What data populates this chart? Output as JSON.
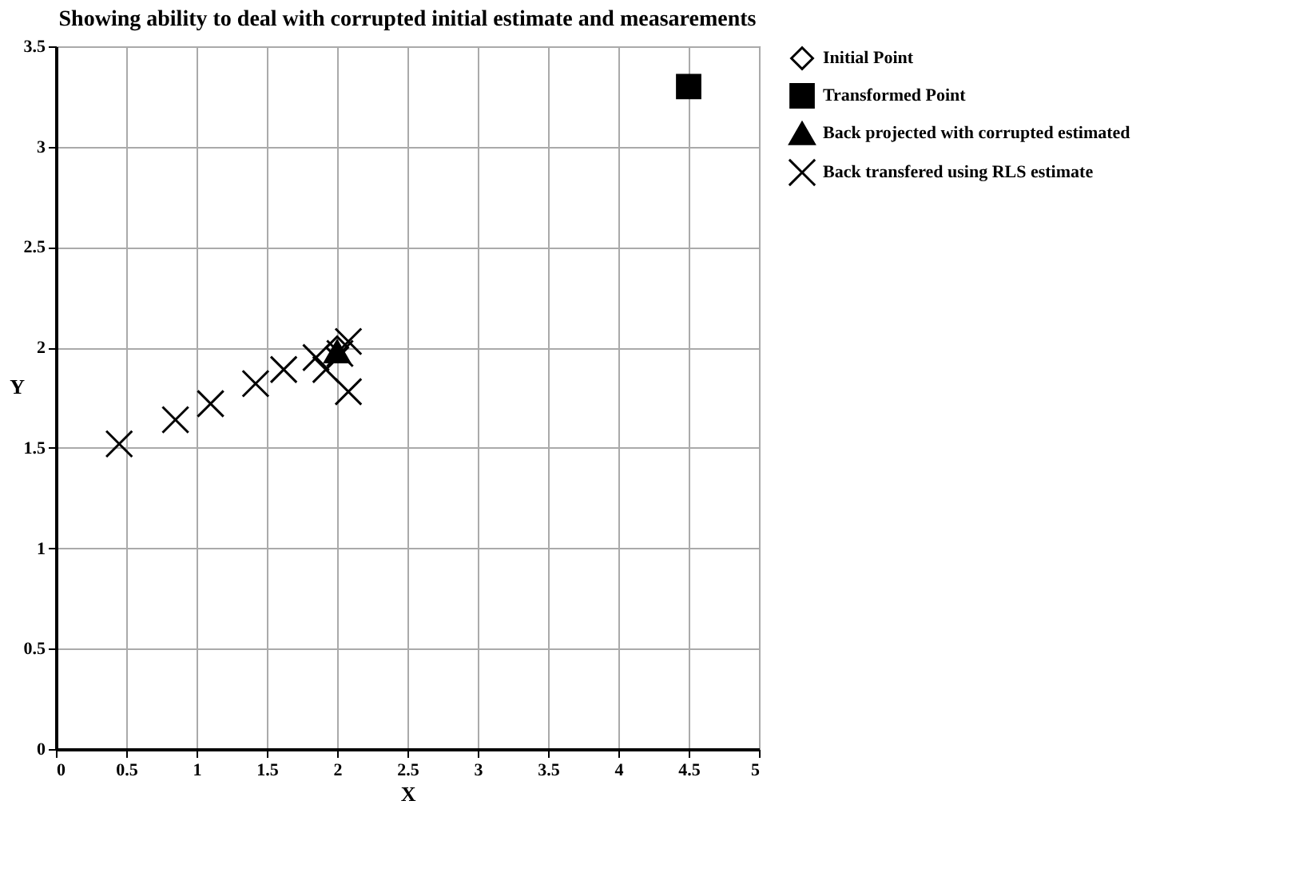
{
  "chart_data": {
    "type": "scatter",
    "title": "Showing ability to deal with corrupted initial estimate and measarements",
    "xlabel": "X",
    "ylabel": "Y",
    "xlim": [
      0,
      5
    ],
    "ylim": [
      0,
      3.5
    ],
    "xticks": [
      0,
      0.5,
      1,
      1.5,
      2,
      2.5,
      3,
      3.5,
      4,
      4.5,
      5
    ],
    "yticks": [
      0,
      0.5,
      1,
      1.5,
      2,
      2.5,
      3,
      3.5
    ],
    "grid": true,
    "legend": "right",
    "series": [
      {
        "name": "Initial Point",
        "color": "#000000",
        "marker": "diamond",
        "x": [
          2
        ],
        "values": [
          2
        ]
      },
      {
        "name": "Transformed Point",
        "color": "#000000",
        "marker": "square",
        "x": [
          4.5
        ],
        "values": [
          3.3
        ]
      },
      {
        "name": "Back projected with corrupted estimated",
        "color": "#000000",
        "marker": "triangle",
        "x": [
          2
        ],
        "values": [
          1.98
        ]
      },
      {
        "name": "Back transfered using RLS estimate",
        "color": "#000000",
        "marker": "cross",
        "x": [
          0.45,
          0.85,
          1.1,
          1.42,
          1.62,
          1.85,
          1.92,
          2.08,
          2.08,
          2.02
        ],
        "values": [
          1.52,
          1.64,
          1.72,
          1.82,
          1.89,
          1.95,
          1.89,
          1.78,
          2.03,
          1.97
        ]
      }
    ]
  }
}
